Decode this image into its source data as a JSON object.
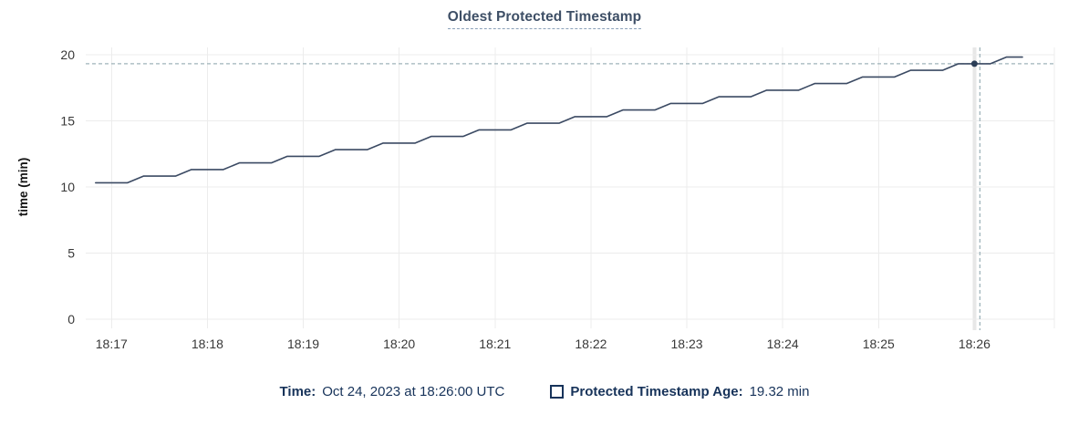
{
  "chart_data": {
    "type": "line",
    "title": "Oldest Protected Timestamp",
    "xlabel": "",
    "ylabel": "time (min)",
    "ylim": [
      0,
      20
    ],
    "yticks": [
      0,
      5,
      10,
      15,
      20
    ],
    "xticks": [
      "18:17",
      "18:18",
      "18:19",
      "18:20",
      "18:21",
      "18:22",
      "18:23",
      "18:24",
      "18:25",
      "18:26"
    ],
    "x_domain": [
      "18:16:45",
      "18:26:50"
    ],
    "grid": true,
    "legend_position": "bottom",
    "series": [
      {
        "name": "Protected Timestamp Age",
        "unit": "min",
        "points": [
          [
            "18:16:50",
            10.32
          ],
          [
            "18:17:10",
            10.32
          ],
          [
            "18:17:20",
            10.82
          ],
          [
            "18:17:40",
            10.82
          ],
          [
            "18:17:50",
            11.32
          ],
          [
            "18:18:10",
            11.32
          ],
          [
            "18:18:20",
            11.82
          ],
          [
            "18:18:40",
            11.82
          ],
          [
            "18:18:50",
            12.32
          ],
          [
            "18:19:10",
            12.32
          ],
          [
            "18:19:20",
            12.82
          ],
          [
            "18:19:40",
            12.82
          ],
          [
            "18:19:50",
            13.32
          ],
          [
            "18:20:10",
            13.32
          ],
          [
            "18:20:20",
            13.82
          ],
          [
            "18:20:40",
            13.82
          ],
          [
            "18:20:50",
            14.32
          ],
          [
            "18:21:10",
            14.32
          ],
          [
            "18:21:20",
            14.82
          ],
          [
            "18:21:40",
            14.82
          ],
          [
            "18:21:50",
            15.32
          ],
          [
            "18:22:10",
            15.32
          ],
          [
            "18:22:20",
            15.82
          ],
          [
            "18:22:40",
            15.82
          ],
          [
            "18:22:50",
            16.32
          ],
          [
            "18:23:10",
            16.32
          ],
          [
            "18:23:20",
            16.82
          ],
          [
            "18:23:40",
            16.82
          ],
          [
            "18:23:50",
            17.32
          ],
          [
            "18:24:10",
            17.32
          ],
          [
            "18:24:20",
            17.82
          ],
          [
            "18:24:40",
            17.82
          ],
          [
            "18:24:50",
            18.32
          ],
          [
            "18:25:10",
            18.32
          ],
          [
            "18:25:20",
            18.82
          ],
          [
            "18:25:40",
            18.82
          ],
          [
            "18:25:50",
            19.32
          ],
          [
            "18:26:10",
            19.32
          ],
          [
            "18:26:20",
            19.82
          ],
          [
            "18:26:30",
            19.82
          ]
        ]
      }
    ],
    "crosshair": {
      "time": "18:26:00",
      "value": 19.32,
      "highlight_x_tick": "18:26"
    }
  },
  "footer": {
    "time_label": "Time:",
    "time_value": "Oct 24, 2023 at 18:26:00 UTC",
    "series_label": "Protected Timestamp Age:",
    "series_value": "19.32 min"
  },
  "colors": {
    "line": "#3b4a63",
    "dot": "#2b3e57",
    "grid": "#ececec",
    "grid_highlight": "#e7e7e7",
    "crosshair": "#9fb3ba",
    "tick_text": "#383838",
    "axis_label": "#141414",
    "title_text": "#3e4f66",
    "title_underline": "#8aa0b8",
    "footer_text": "#17335a"
  }
}
